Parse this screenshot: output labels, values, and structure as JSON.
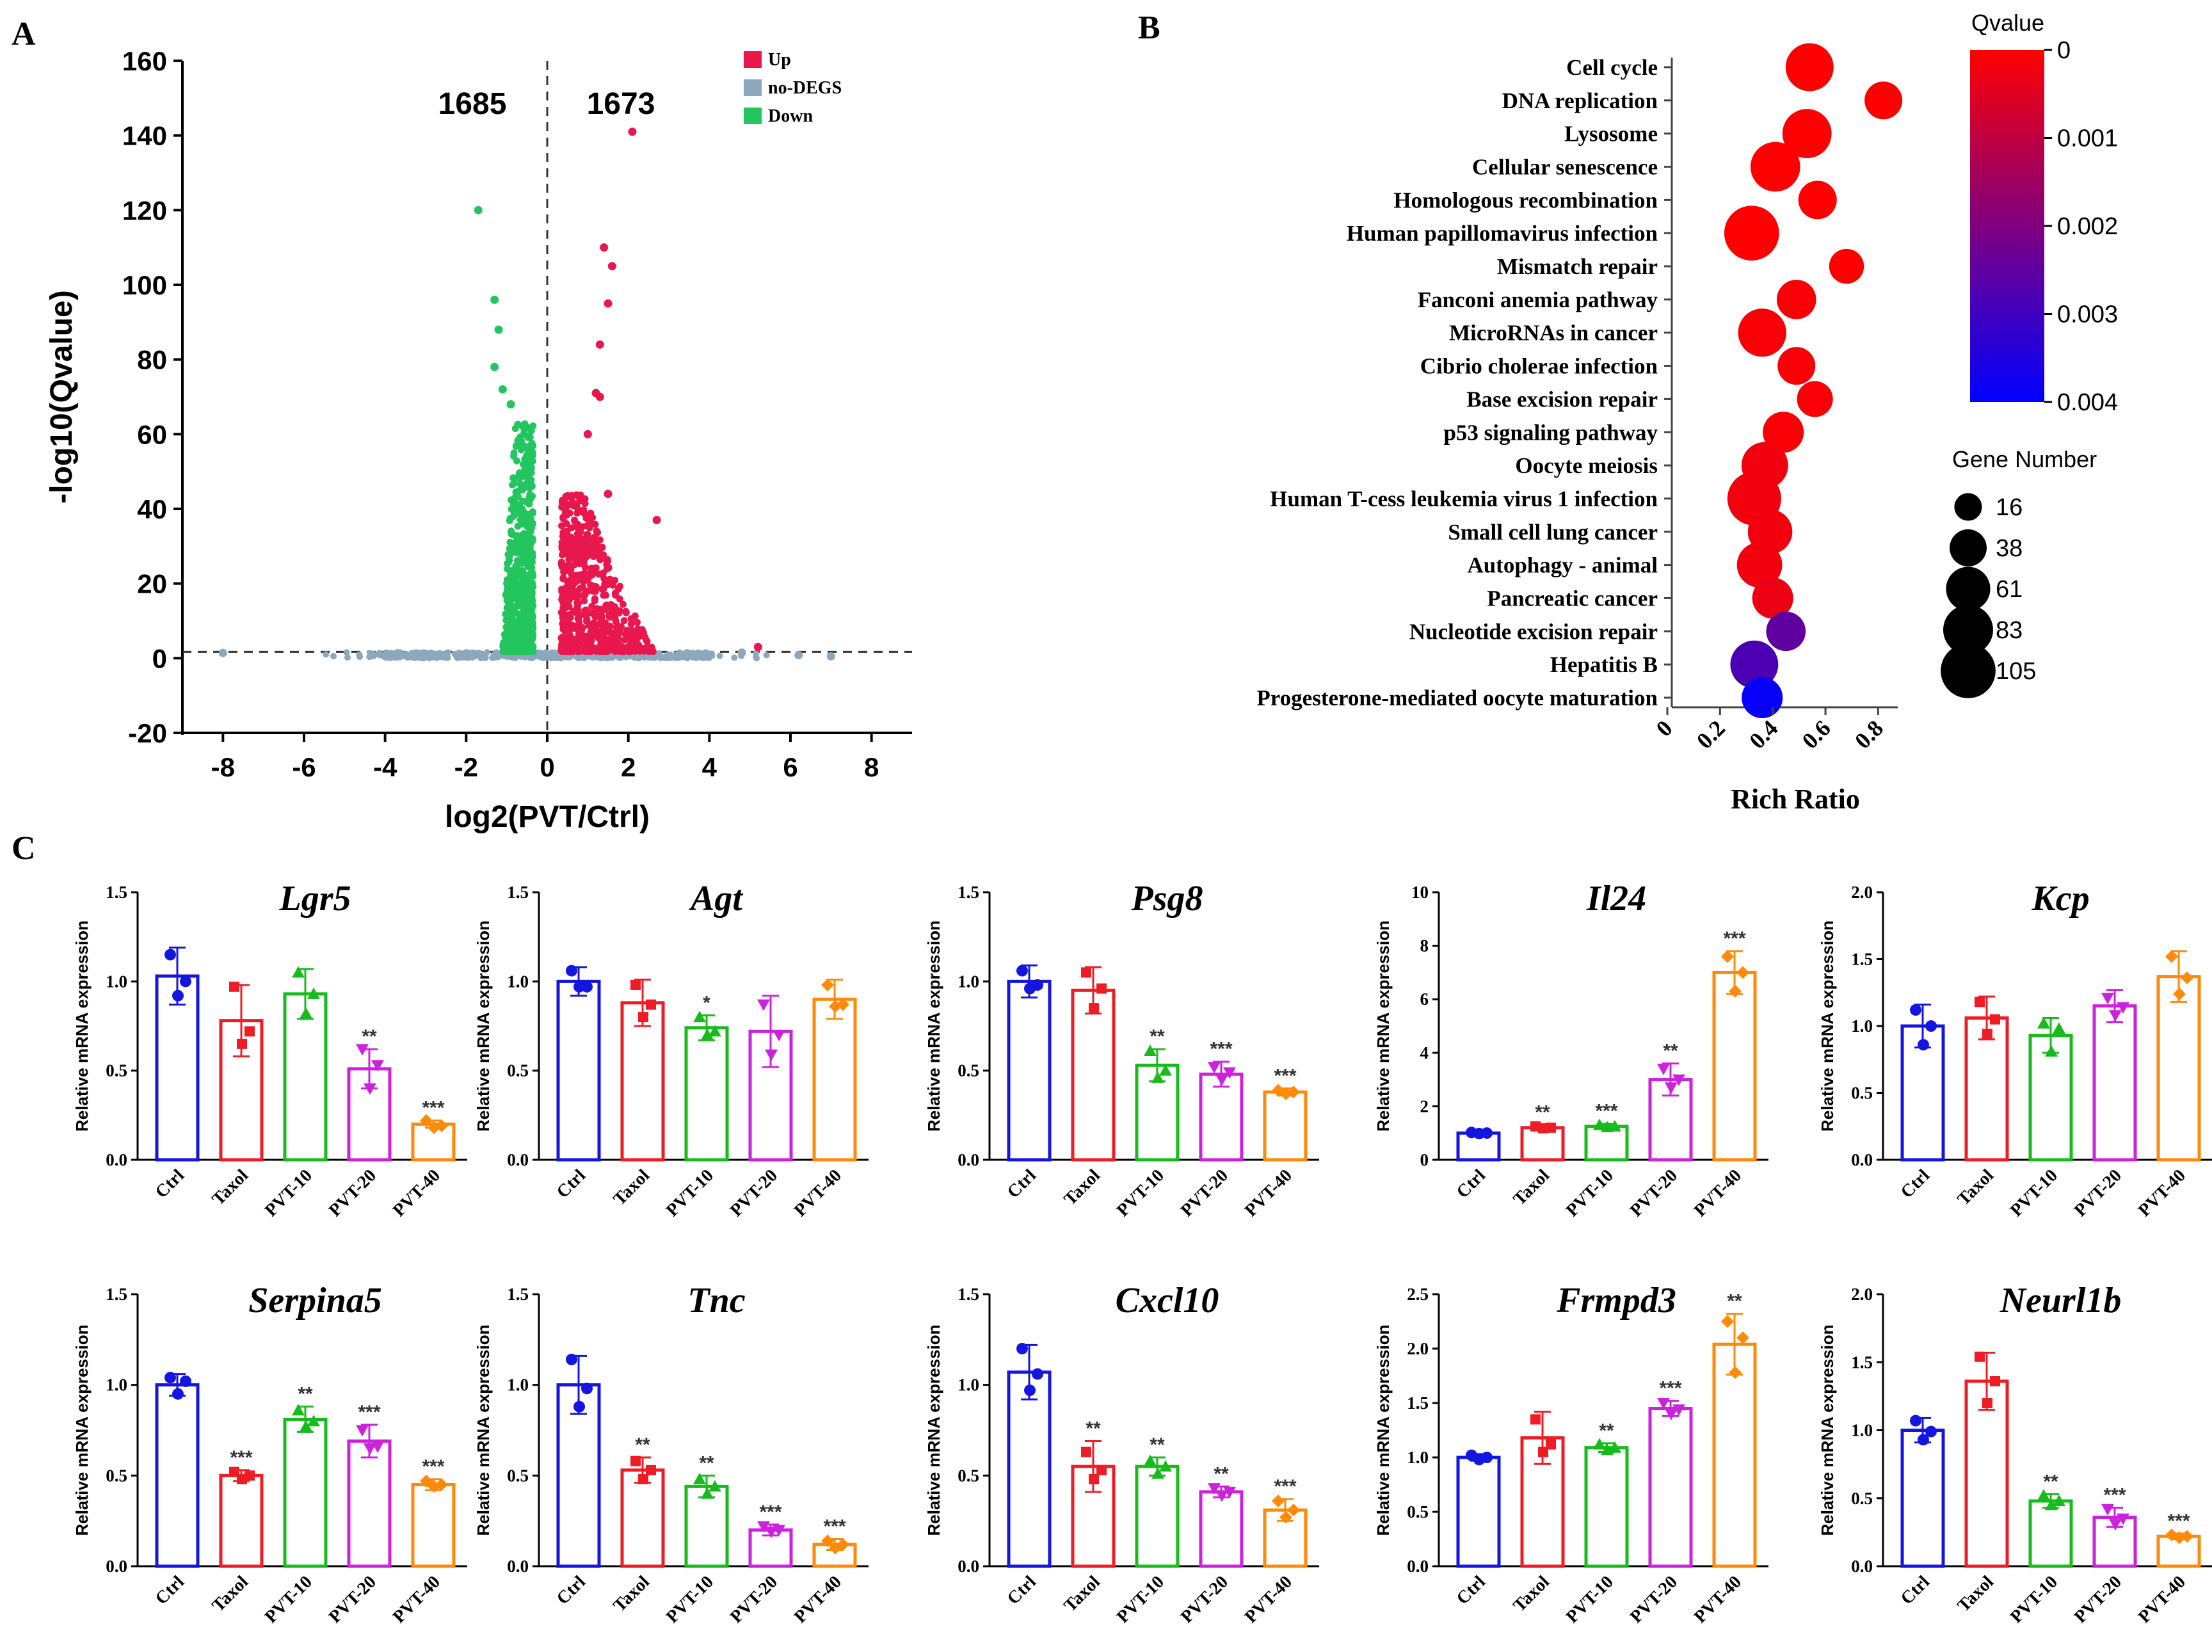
{
  "panels": {
    "a": "A",
    "b": "B",
    "c": "C"
  },
  "colors": {
    "up": "#e8174e",
    "nodeg": "#8da8bd",
    "down": "#22c55e",
    "bars": [
      "#1515e0",
      "#ee1c25",
      "#18bb1c",
      "#cc22dd",
      "#ff8a0a"
    ]
  },
  "chart_data": [
    {
      "type": "scatter",
      "panel": "A",
      "title": "Volcano plot",
      "xlabel": "log2(PVT/Ctrl)",
      "ylabel": "-log10(Qvalue)",
      "xlim": [
        -9,
        9
      ],
      "ylim": [
        -20,
        160
      ],
      "xticks": [
        -8,
        -6,
        -4,
        -2,
        0,
        2,
        4,
        6,
        8
      ],
      "yticks": [
        -20,
        0,
        20,
        40,
        60,
        80,
        100,
        120,
        140,
        160
      ],
      "threshold_y": 1.7,
      "counts": {
        "down": "1685",
        "up": "1673"
      },
      "legend": [
        "Up",
        "no-DEGS",
        "Down"
      ],
      "highlight_points": [
        {
          "x": 2.1,
          "y": 141,
          "g": "up"
        },
        {
          "x": 1.4,
          "y": 110,
          "g": "up"
        },
        {
          "x": 1.6,
          "y": 105,
          "g": "up"
        },
        {
          "x": 1.5,
          "y": 95,
          "g": "up"
        },
        {
          "x": 1.3,
          "y": 84,
          "g": "up"
        },
        {
          "x": 1.2,
          "y": 71,
          "g": "up"
        },
        {
          "x": 1.3,
          "y": 70,
          "g": "up"
        },
        {
          "x": 1.0,
          "y": 60,
          "g": "up"
        },
        {
          "x": 2.7,
          "y": 37,
          "g": "up"
        },
        {
          "x": 1.5,
          "y": 44,
          "g": "up"
        },
        {
          "x": 5.2,
          "y": 3,
          "g": "up"
        },
        {
          "x": -1.7,
          "y": 120,
          "g": "down"
        },
        {
          "x": -1.3,
          "y": 96,
          "g": "down"
        },
        {
          "x": -1.2,
          "y": 88,
          "g": "down"
        },
        {
          "x": -1.3,
          "y": 78,
          "g": "down"
        },
        {
          "x": -1.1,
          "y": 72,
          "g": "down"
        },
        {
          "x": -0.9,
          "y": 68,
          "g": "down"
        },
        {
          "x": -8.0,
          "y": 1.4,
          "g": "nodeg"
        },
        {
          "x": 7.0,
          "y": 0.5,
          "g": "nodeg"
        },
        {
          "x": 6.2,
          "y": 0.8,
          "g": "nodeg"
        },
        {
          "x": 4.8,
          "y": 1.5,
          "g": "nodeg"
        },
        {
          "x": -4.3,
          "y": 0.8,
          "g": "nodeg"
        }
      ]
    },
    {
      "type": "bubble",
      "panel": "B",
      "xlabel": "Rich Ratio",
      "xlim": [
        0,
        0.85
      ],
      "xticks": [
        "0",
        "0.2",
        "0.4",
        "0.6",
        "0.8"
      ],
      "xtick_values": [
        0,
        0.2,
        0.4,
        0.6,
        0.8
      ],
      "color_title": "Qvalue",
      "color_ticks": [
        "0",
        "0.001",
        "0.002",
        "0.003",
        "0.004"
      ],
      "size_title": "Gene Number",
      "size_legend": [
        "16",
        "38",
        "61",
        "83",
        "105"
      ],
      "size_values": [
        16,
        38,
        61,
        83,
        105
      ],
      "terms": [
        {
          "name": "Cell cycle",
          "ratio": 0.54,
          "genes": 75,
          "q": 0.0
        },
        {
          "name": "DNA replication",
          "ratio": 0.82,
          "genes": 40,
          "q": 0.0
        },
        {
          "name": "Lysosome",
          "ratio": 0.53,
          "genes": 80,
          "q": 0.0
        },
        {
          "name": "Cellular senescence",
          "ratio": 0.41,
          "genes": 82,
          "q": 0.0
        },
        {
          "name": "Homologous recombination",
          "ratio": 0.57,
          "genes": 42,
          "q": 0.0
        },
        {
          "name": "Human papillomavirus infection",
          "ratio": 0.32,
          "genes": 105,
          "q": 0.0
        },
        {
          "name": "Mismatch repair",
          "ratio": 0.68,
          "genes": 32,
          "q": 0.0
        },
        {
          "name": "Fanconi anemia pathway",
          "ratio": 0.49,
          "genes": 45,
          "q": 0.0001
        },
        {
          "name": "MicroRNAs in cancer",
          "ratio": 0.36,
          "genes": 76,
          "q": 0.0001
        },
        {
          "name": "Cibrio cholerae infection",
          "ratio": 0.49,
          "genes": 40,
          "q": 0.0001
        },
        {
          "name": "Base excision repair",
          "ratio": 0.56,
          "genes": 35,
          "q": 0.0001
        },
        {
          "name": "p53 signaling pathway",
          "ratio": 0.44,
          "genes": 50,
          "q": 0.0001
        },
        {
          "name": "Oocyte meiosis",
          "ratio": 0.37,
          "genes": 70,
          "q": 0.0002
        },
        {
          "name": "Human T-cess leukemia virus 1 infection",
          "ratio": 0.33,
          "genes": 100,
          "q": 0.0002
        },
        {
          "name": "Small cell lung cancer",
          "ratio": 0.39,
          "genes": 62,
          "q": 0.0002
        },
        {
          "name": "Autophagy - animal",
          "ratio": 0.35,
          "genes": 65,
          "q": 0.0002
        },
        {
          "name": "Pancreatic cancer",
          "ratio": 0.4,
          "genes": 50,
          "q": 0.0003
        },
        {
          "name": "Nucleotide excision repair",
          "ratio": 0.45,
          "genes": 45,
          "q": 0.0025
        },
        {
          "name": "Hepatitis B",
          "ratio": 0.33,
          "genes": 75,
          "q": 0.0028
        },
        {
          "name": "Progesterone-mediated oocyte maturation",
          "ratio": 0.36,
          "genes": 50,
          "q": 0.0039
        }
      ]
    },
    {
      "type": "bar",
      "panel": "C",
      "ylabel": "Relative mRNA expression",
      "categories": [
        "Ctrl",
        "Taxol",
        "PVT-10",
        "PVT-20",
        "PVT-40"
      ],
      "genes": [
        {
          "name": "Lgr5",
          "ylim": [
            0,
            1.5
          ],
          "yticks": [
            "0.0",
            "0.5",
            "1.0",
            "1.5"
          ],
          "values": [
            1.03,
            0.78,
            0.93,
            0.51,
            0.2
          ],
          "sd": [
            0.16,
            0.2,
            0.14,
            0.11,
            0.02
          ],
          "points": [
            [
              1.15,
              1.0,
              0.92
            ],
            [
              0.97,
              0.72,
              0.65
            ],
            [
              1.05,
              0.93,
              0.82
            ],
            [
              0.62,
              0.53,
              0.4
            ],
            [
              0.22,
              0.19,
              0.18
            ]
          ],
          "sig": [
            "",
            "",
            "",
            "**",
            "***"
          ]
        },
        {
          "name": "Agt",
          "ylim": [
            0,
            1.5
          ],
          "yticks": [
            "0.0",
            "0.5",
            "1.0",
            "1.5"
          ],
          "values": [
            1.0,
            0.88,
            0.74,
            0.72,
            0.9
          ],
          "sd": [
            0.08,
            0.13,
            0.07,
            0.2,
            0.11
          ],
          "points": [
            [
              1.06,
              0.97,
              0.97
            ],
            [
              0.98,
              0.87,
              0.8
            ],
            [
              0.8,
              0.72,
              0.7
            ],
            [
              0.87,
              0.7,
              0.59
            ],
            [
              0.98,
              0.87,
              0.86
            ]
          ],
          "sig": [
            "",
            "",
            "*",
            "",
            ""
          ]
        },
        {
          "name": "Psg8",
          "ylim": [
            0,
            1.5
          ],
          "yticks": [
            "0.0",
            "0.5",
            "1.0",
            "1.5"
          ],
          "values": [
            1.0,
            0.95,
            0.53,
            0.48,
            0.38
          ],
          "sd": [
            0.09,
            0.13,
            0.09,
            0.07,
            0.02
          ],
          "points": [
            [
              1.06,
              0.98,
              0.96
            ],
            [
              1.05,
              0.96,
              0.85
            ],
            [
              0.61,
              0.5,
              0.46
            ],
            [
              0.52,
              0.49,
              0.45
            ],
            [
              0.39,
              0.38,
              0.37
            ]
          ],
          "sig": [
            "",
            "",
            "**",
            "***",
            "***"
          ]
        },
        {
          "name": "Il24",
          "ylim": [
            0,
            10
          ],
          "yticks": [
            "0",
            "2",
            "4",
            "6",
            "8",
            "10"
          ],
          "values": [
            1.0,
            1.2,
            1.25,
            3.0,
            7.0
          ],
          "sd": [
            0.1,
            0.1,
            0.1,
            0.6,
            0.8
          ],
          "points": [
            [
              1.02,
              1.0,
              0.98
            ],
            [
              1.25,
              1.2,
              1.18
            ],
            [
              1.3,
              1.25,
              1.22
            ],
            [
              3.4,
              3.0,
              2.7
            ],
            [
              7.6,
              7.0,
              6.3
            ]
          ],
          "sig": [
            "",
            "**",
            "***",
            "**",
            "***"
          ]
        },
        {
          "name": "Kcp",
          "ylim": [
            0,
            2.0
          ],
          "yticks": [
            "0.0",
            "0.5",
            "1.0",
            "1.5",
            "2.0"
          ],
          "values": [
            1.0,
            1.06,
            0.93,
            1.15,
            1.37
          ],
          "sd": [
            0.16,
            0.16,
            0.13,
            0.12,
            0.19
          ],
          "points": [
            [
              1.12,
              1.0,
              0.86
            ],
            [
              1.18,
              1.05,
              0.94
            ],
            [
              1.02,
              0.98,
              0.81
            ],
            [
              1.21,
              1.14,
              1.08
            ],
            [
              1.52,
              1.36,
              1.24
            ]
          ],
          "sig": [
            "",
            "",
            "",
            "",
            ""
          ]
        },
        {
          "name": "Serpina5",
          "ylim": [
            0,
            1.5
          ],
          "yticks": [
            "0.0",
            "0.5",
            "1.0",
            "1.5"
          ],
          "values": [
            1.0,
            0.5,
            0.81,
            0.69,
            0.45
          ],
          "sd": [
            0.06,
            0.03,
            0.07,
            0.09,
            0.03
          ],
          "points": [
            [
              1.04,
              1.02,
              0.95
            ],
            [
              0.52,
              0.5,
              0.48
            ],
            [
              0.86,
              0.8,
              0.77
            ],
            [
              0.75,
              0.66,
              0.65
            ],
            [
              0.47,
              0.45,
              0.44
            ]
          ],
          "sig": [
            "",
            "***",
            "**",
            "***",
            "***"
          ]
        },
        {
          "name": "Tnc",
          "ylim": [
            0,
            1.5
          ],
          "yticks": [
            "0.0",
            "0.5",
            "1.0",
            "1.5"
          ],
          "values": [
            1.0,
            0.53,
            0.44,
            0.2,
            0.12
          ],
          "sd": [
            0.16,
            0.07,
            0.06,
            0.03,
            0.03
          ],
          "points": [
            [
              1.14,
              0.98,
              0.88
            ],
            [
              0.58,
              0.53,
              0.48
            ],
            [
              0.48,
              0.44,
              0.4
            ],
            [
              0.22,
              0.2,
              0.19
            ],
            [
              0.14,
              0.12,
              0.1
            ]
          ],
          "sig": [
            "",
            "**",
            "**",
            "***",
            "***"
          ]
        },
        {
          "name": "Cxcl10",
          "ylim": [
            0,
            1.5
          ],
          "yticks": [
            "0.0",
            "0.5",
            "1.0",
            "1.5"
          ],
          "values": [
            1.07,
            0.55,
            0.55,
            0.41,
            0.31
          ],
          "sd": [
            0.15,
            0.14,
            0.05,
            0.03,
            0.06
          ],
          "points": [
            [
              1.2,
              1.06,
              0.97
            ],
            [
              0.63,
              0.53,
              0.48
            ],
            [
              0.58,
              0.55,
              0.51
            ],
            [
              0.43,
              0.41,
              0.39
            ],
            [
              0.36,
              0.31,
              0.27
            ]
          ],
          "sig": [
            "",
            "**",
            "**",
            "**",
            "***"
          ]
        },
        {
          "name": "Frmpd3",
          "ylim": [
            0,
            2.5
          ],
          "yticks": [
            "0.0",
            "0.5",
            "1.0",
            "1.5",
            "2.0",
            "2.5"
          ],
          "values": [
            1.0,
            1.18,
            1.09,
            1.45,
            2.04
          ],
          "sd": [
            0.03,
            0.24,
            0.04,
            0.07,
            0.28
          ],
          "points": [
            [
              1.02,
              1.0,
              0.98
            ],
            [
              1.35,
              1.12,
              1.05
            ],
            [
              1.12,
              1.09,
              1.07
            ],
            [
              1.5,
              1.44,
              1.4
            ],
            [
              2.25,
              2.1,
              1.78
            ]
          ],
          "sig": [
            "",
            "",
            "**",
            "***",
            "**"
          ]
        },
        {
          "name": "Neurl1b",
          "ylim": [
            0,
            2.0
          ],
          "yticks": [
            "0.0",
            "0.5",
            "1.0",
            "1.5",
            "2.0"
          ],
          "values": [
            1.0,
            1.36,
            0.48,
            0.36,
            0.22
          ],
          "sd": [
            0.09,
            0.21,
            0.05,
            0.07,
            0.02
          ],
          "points": [
            [
              1.07,
              0.99,
              0.93
            ],
            [
              1.54,
              1.36,
              1.2
            ],
            [
              0.52,
              0.48,
              0.45
            ],
            [
              0.42,
              0.35,
              0.31
            ],
            [
              0.23,
              0.22,
              0.21
            ]
          ],
          "sig": [
            "",
            "",
            "**",
            "***",
            "***"
          ]
        }
      ]
    }
  ]
}
